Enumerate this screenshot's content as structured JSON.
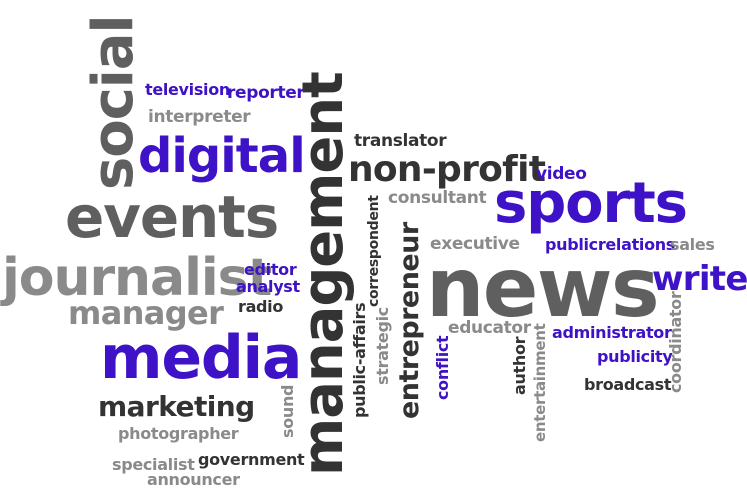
{
  "words": {
    "social": "social",
    "television": "television",
    "reporter": "reporter",
    "interpreter": "interpreter",
    "digital": "digital",
    "events": "events",
    "journalist": "journalist",
    "editor": "editor",
    "analyst": "analyst",
    "radio": "radio",
    "manager": "manager",
    "media": "media",
    "marketing": "marketing",
    "photographer": "photographer",
    "specialist": "specialist",
    "government": "government",
    "announcer": "announcer",
    "management": "management",
    "translator": "translator",
    "non_profit": "non-profit",
    "consultant": "consultant",
    "correspondent": "correspondent",
    "public_affairs": "public-affairs",
    "strategic": "strategic",
    "entrepreneur": "entrepreneur",
    "video": "video",
    "sports": "sports",
    "executive": "executive",
    "publicrelations": "publicrelations",
    "sales": "sales",
    "news": "news",
    "writer": "writer",
    "educator": "educator",
    "administrator": "administrator",
    "coordinator": "coordinator",
    "publicity": "publicity",
    "conflict": "conflict",
    "author": "author",
    "entertainment": "entertainment",
    "broadcast": "broadcast",
    "sound": "sound"
  },
  "colors": {
    "dark": "#333333",
    "gray": "#5f5f5f",
    "light": "#8a8a8a",
    "blue": "#3e12c6",
    "background": "#ffffff"
  }
}
